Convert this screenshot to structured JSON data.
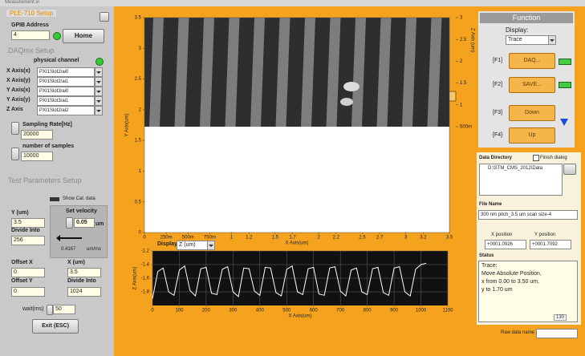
{
  "window_title": "Measurement.vi",
  "setup": {
    "title": "PLE-710 Setup",
    "gpib_label": "GPIB Address",
    "gpib_value": "4",
    "home_button": "Home"
  },
  "daqmx": {
    "title": "DAQmx Setup",
    "channel_header": "physical channel",
    "channels": [
      {
        "label": "X Axis(x)",
        "value": "PXI1Slot2/ai0"
      },
      {
        "label": "X Axis(y)",
        "value": "PXI1Slot2/ai1"
      },
      {
        "label": "Y Axis(x)",
        "value": "PXI1Slot3/ai0"
      },
      {
        "label": "Y Axis(y)",
        "value": "PXI1Slot3/ai1"
      },
      {
        "label": "Z Axis",
        "value": "PXI1Slot2/ai2"
      }
    ],
    "sampling_rate_label": "Sampling Rate[Hz]",
    "sampling_rate": "20000",
    "samples_label": "number of samples",
    "samples": "10000"
  },
  "test": {
    "title": "Test Parameters Setup",
    "show_cal": "Show Cal. data",
    "y_label": "Y (um)",
    "y_value": "3.5",
    "y_divide_label": "Divide Into",
    "y_divide": "256",
    "velocity_label": "Set velocity",
    "velocity": "0.05",
    "velocity_unit": "um",
    "speed": "0.4167",
    "speed_unit": "um/ms",
    "offset_x_label": "Offset X",
    "offset_x": "0",
    "offset_y_label": "Offset Y",
    "offset_y": "0",
    "x_label": "X (um)",
    "x_value": "3.5",
    "x_divide_label": "Divide Into",
    "x_divide": "1024",
    "wait_label": "wait(ms)",
    "wait": "50",
    "exit_button": "Exit (ESC)"
  },
  "chart_data": [
    {
      "type": "image",
      "x_label": "X Axis(um)",
      "y_label": "Y Axis(um)",
      "z_label": "Z Axis (um)",
      "xlim": [
        0,
        3.5
      ],
      "ylim": [
        0,
        3.5
      ],
      "xticks": [
        0,
        {
          "value": 0.25,
          "label": "250m"
        },
        {
          "value": 0.5,
          "label": "500m"
        },
        {
          "value": 0.75,
          "label": "750m"
        },
        1,
        1.2,
        1.5,
        1.7,
        2,
        2.2,
        2.5,
        2.7,
        3,
        3.2,
        3.5
      ],
      "yticks": [
        0,
        0.5,
        1,
        1.5,
        2,
        2.5,
        3,
        3.5
      ],
      "zlim": [
        0.5,
        3
      ],
      "zticks": [
        {
          "value": 0.5,
          "label": "500m"
        },
        1,
        1.5,
        2,
        2.5,
        3
      ]
    },
    {
      "type": "line",
      "display_label": "Display",
      "display_value": "Z (um)",
      "x_label": "X Axis(um)",
      "y_label": "Z Axis(um)",
      "grid": true,
      "color": "#ffffff",
      "xlim": [
        0,
        1100
      ],
      "ylim": [
        -2,
        -1.2
      ],
      "xticks": [
        0,
        100,
        200,
        300,
        400,
        500,
        600,
        700,
        800,
        900,
        1000,
        1100
      ],
      "yticks": [
        -1.2,
        -1.4,
        -1.6,
        -1.8
      ],
      "x": [
        0,
        20,
        40,
        60,
        80,
        100,
        120,
        140,
        160,
        180,
        200,
        220,
        240,
        260,
        280,
        300,
        320,
        340,
        360,
        380,
        400,
        420,
        440,
        460,
        480,
        500,
        520,
        540,
        560,
        580,
        600,
        620,
        640,
        660,
        680,
        700,
        720,
        740,
        760,
        780,
        800,
        820,
        840,
        860,
        880,
        900,
        920,
        940,
        960,
        980,
        1000,
        1020
      ],
      "values": [
        -1.9,
        -1.5,
        -1.45,
        -1.8,
        -1.85,
        -1.48,
        -1.42,
        -1.78,
        -1.86,
        -1.46,
        -1.44,
        -1.82,
        -1.84,
        -1.47,
        -1.43,
        -1.8,
        -1.87,
        -1.45,
        -1.46,
        -1.79,
        -1.85,
        -1.44,
        -1.45,
        -1.81,
        -1.86,
        -1.47,
        -1.42,
        -1.8,
        -1.84,
        -1.46,
        -1.44,
        -1.83,
        -1.85,
        -1.45,
        -1.43,
        -1.79,
        -1.86,
        -1.48,
        -1.45,
        -1.8,
        -1.84,
        -1.46,
        -1.44,
        -1.81,
        -1.85,
        -1.45,
        -1.43,
        -1.8,
        -1.86,
        -1.47,
        -1.4,
        -1.38
      ]
    }
  ],
  "function": {
    "title": "Function",
    "display_label": "Display:",
    "display_value": "Trace",
    "buttons": [
      {
        "key": "[F1]",
        "label": "DAQ..."
      },
      {
        "key": "[F2]",
        "label": "SAVE..."
      },
      {
        "key": "[F3]",
        "label": "Down"
      },
      {
        "key": "[F4]",
        "label": "Up"
      }
    ]
  },
  "files": {
    "directory_label": "Data Directory",
    "finish_dialog": "Finish dialog",
    "directory": "D:\\STM_CMS_2012\\Data",
    "file_name_label": "File Name",
    "file_name": "300 nm pitch_3.5 um scan size-4"
  },
  "position": {
    "x_label": "X position",
    "x_value": "+0001.0926",
    "y_label": "Y position",
    "y_value": "+0001.7092"
  },
  "status": {
    "title": "Status",
    "lines": [
      "Trace:",
      "Move Absolute Position,",
      "x from 0.00 to 3.50  um,",
      "y to 1.70 um"
    ],
    "count": "130"
  },
  "raw_data_label": "Raw data name"
}
